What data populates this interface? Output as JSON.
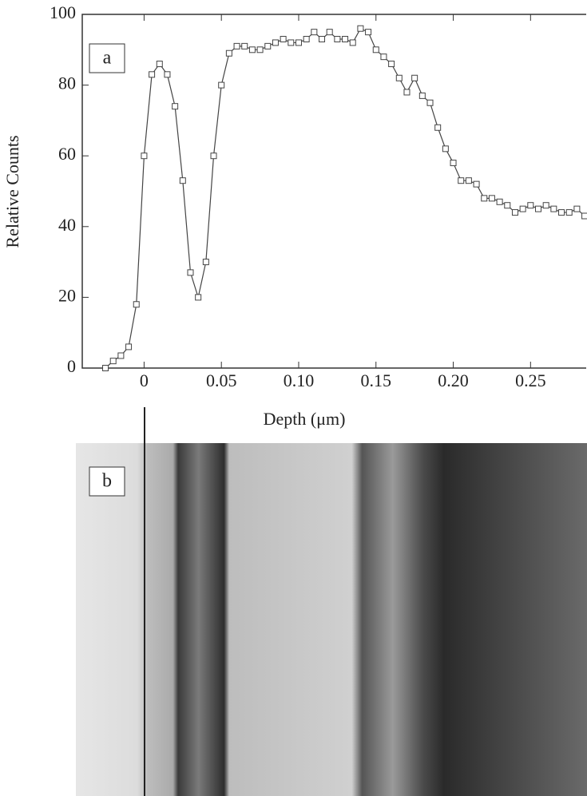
{
  "chart_data": {
    "type": "line",
    "x_label": "Depth (μm)",
    "y_label": "Relative Counts",
    "annotations": [
      "a",
      "b"
    ],
    "x": [
      -0.025,
      -0.02,
      -0.015,
      -0.01,
      -0.005,
      0,
      0.005,
      0.01,
      0.015,
      0.02,
      0.025,
      0.03,
      0.035,
      0.04,
      0.045,
      0.05,
      0.055,
      0.06,
      0.065,
      0.07,
      0.075,
      0.08,
      0.085,
      0.09,
      0.095,
      0.1,
      0.105,
      0.11,
      0.115,
      0.12,
      0.125,
      0.13,
      0.135,
      0.14,
      0.145,
      0.15,
      0.155,
      0.16,
      0.165,
      0.17,
      0.175,
      0.18,
      0.185,
      0.19,
      0.195,
      0.2,
      0.205,
      0.21,
      0.215,
      0.22,
      0.225,
      0.23,
      0.235,
      0.24,
      0.245,
      0.25,
      0.255,
      0.26,
      0.265,
      0.27,
      0.275,
      0.28,
      0.285
    ],
    "series": [
      {
        "color": "#444444",
        "values": [
          0,
          2,
          3.5,
          6,
          18,
          60,
          83,
          86,
          83,
          74,
          53,
          27,
          20,
          30,
          60,
          80,
          89,
          91,
          91,
          90,
          90,
          91,
          92,
          93,
          92,
          92,
          93,
          95,
          93,
          95,
          93,
          93,
          92,
          96,
          95,
          90,
          88,
          86,
          82,
          78,
          82,
          77,
          75,
          68,
          62,
          58,
          53,
          53,
          52,
          48,
          48,
          47,
          46,
          44,
          45,
          46,
          45,
          46,
          45,
          44,
          44,
          45,
          43
        ]
      }
    ],
    "xlim": [
      -0.04,
      0.286
    ],
    "ylim": [
      0,
      100
    ],
    "xticks": [
      0,
      0.05,
      {
        "value": 0.1,
        "label": "0.10"
      },
      0.15,
      {
        "value": 0.2,
        "label": "0.20"
      },
      0.25
    ],
    "yticks": [
      0,
      20,
      40,
      60,
      80,
      100
    ]
  }
}
